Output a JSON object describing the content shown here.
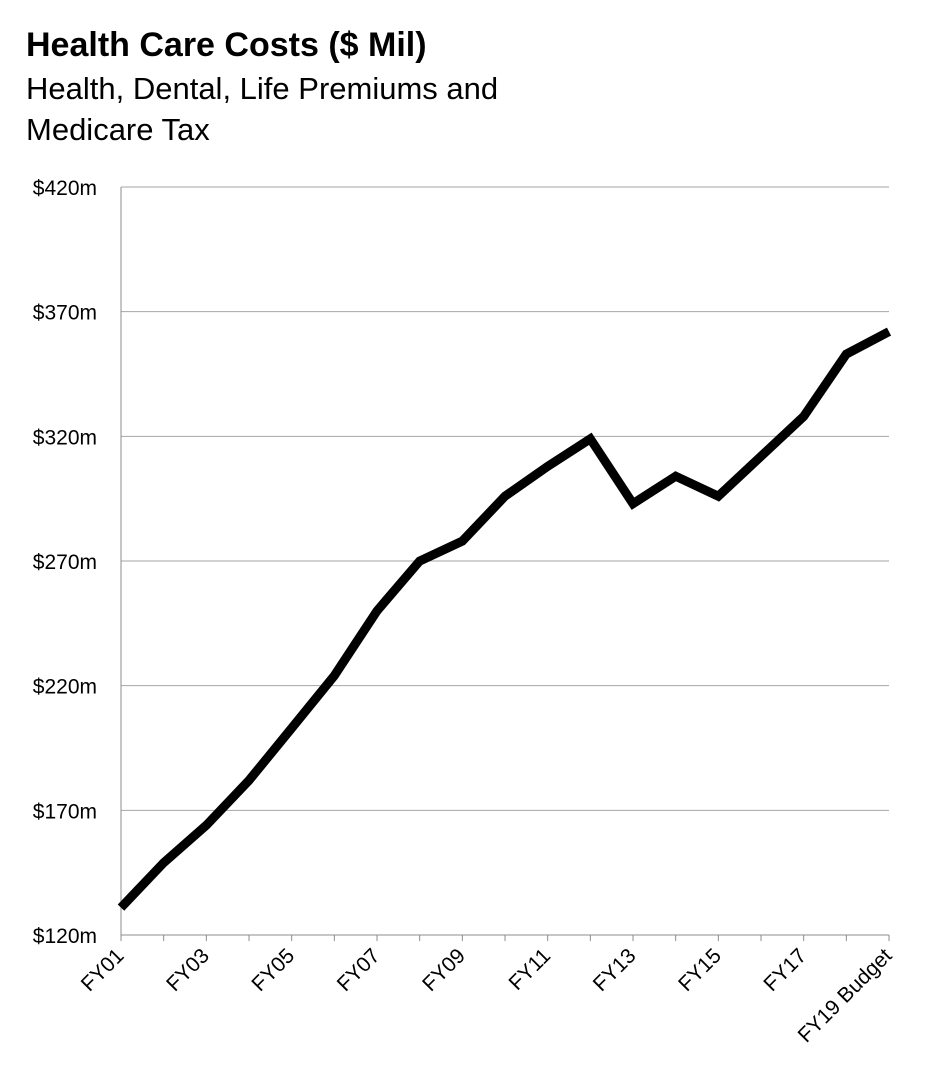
{
  "chart_data": {
    "type": "line",
    "title": "Health Care Costs ($ Mil)",
    "subtitle": "Health, Dental, Life Premiums and Medicare Tax",
    "xlabel": "",
    "ylabel": "",
    "categories": [
      "FY01",
      "FY02",
      "FY03",
      "FY04",
      "FY05",
      "FY06",
      "FY07",
      "FY08",
      "FY09",
      "FY10",
      "FY11",
      "FY12",
      "FY13",
      "FY14",
      "FY15",
      "FY16",
      "FY17",
      "FY18",
      "FY19 Budget"
    ],
    "x_tick_labels": [
      "FY01",
      "FY03",
      "FY05",
      "FY07",
      "FY09",
      "FY11",
      "FY13",
      "FY15",
      "FY17",
      "FY19 Budget"
    ],
    "x_tick_label_categories": [
      "FY01",
      "FY03",
      "FY05",
      "FY07",
      "FY09",
      "FY11",
      "FY13",
      "FY15",
      "FY17",
      "FY19 Budget"
    ],
    "series": [
      {
        "values": [
          131,
          149,
          164,
          182,
          203,
          224,
          250,
          270,
          278,
          296,
          308,
          319,
          293,
          304,
          296,
          312,
          328,
          353,
          362
        ]
      }
    ],
    "y_ticks": [
      120,
      170,
      220,
      270,
      320,
      370,
      420
    ],
    "y_tick_labels": [
      "$120m",
      "$170m",
      "$220m",
      "$270m",
      "$320m",
      "$370m",
      "$420m"
    ],
    "ylim": [
      120,
      420
    ],
    "grid": true,
    "legend": "none",
    "colors": {
      "line": "#000000",
      "grid": "#a6a6a6",
      "axis": "#8c8c8c",
      "text": "#000000"
    }
  }
}
